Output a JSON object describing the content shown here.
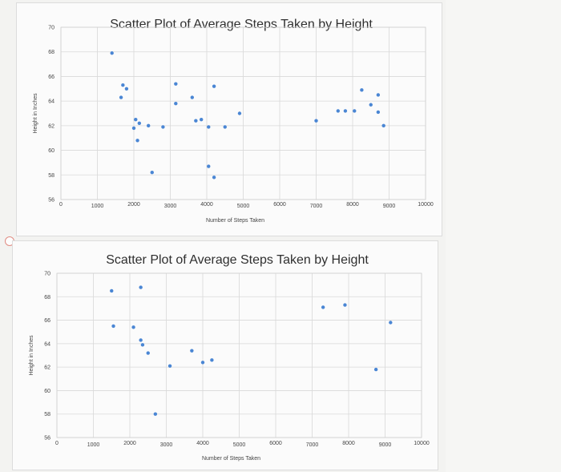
{
  "chart_data": [
    {
      "type": "scatter",
      "title": "Scatter Plot of Average Steps Taken by Height",
      "xlabel": "Number of Steps Taken",
      "ylabel": "Height in Inches",
      "xlim": [
        0,
        10000
      ],
      "ylim": [
        56,
        70
      ],
      "x_ticks": [
        "0",
        "1000",
        "2000",
        "3000",
        "4000",
        "5000",
        "6000",
        "7000",
        "8000",
        "9000",
        "10000"
      ],
      "y_ticks": [
        "56",
        "58",
        "60",
        "62",
        "64",
        "66",
        "68",
        "70"
      ],
      "grid": true,
      "point_color": "#4a86d4",
      "points": [
        {
          "x": 1400,
          "y": 67.9
        },
        {
          "x": 1700,
          "y": 65.3
        },
        {
          "x": 1800,
          "y": 65.0
        },
        {
          "x": 1650,
          "y": 64.3
        },
        {
          "x": 2050,
          "y": 62.5
        },
        {
          "x": 2150,
          "y": 62.2
        },
        {
          "x": 2000,
          "y": 61.8
        },
        {
          "x": 2100,
          "y": 60.8
        },
        {
          "x": 2400,
          "y": 62.0
        },
        {
          "x": 2500,
          "y": 58.2
        },
        {
          "x": 2800,
          "y": 61.9
        },
        {
          "x": 3150,
          "y": 65.4
        },
        {
          "x": 3150,
          "y": 63.8
        },
        {
          "x": 3600,
          "y": 64.3
        },
        {
          "x": 3700,
          "y": 62.4
        },
        {
          "x": 3850,
          "y": 62.5
        },
        {
          "x": 4050,
          "y": 61.9
        },
        {
          "x": 4200,
          "y": 65.2
        },
        {
          "x": 4500,
          "y": 61.9
        },
        {
          "x": 4050,
          "y": 58.7
        },
        {
          "x": 4200,
          "y": 57.8
        },
        {
          "x": 4900,
          "y": 63.0
        },
        {
          "x": 7000,
          "y": 62.4
        },
        {
          "x": 7600,
          "y": 63.2
        },
        {
          "x": 7800,
          "y": 63.2
        },
        {
          "x": 8050,
          "y": 63.2
        },
        {
          "x": 8250,
          "y": 64.9
        },
        {
          "x": 8500,
          "y": 63.7
        },
        {
          "x": 8700,
          "y": 64.5
        },
        {
          "x": 8700,
          "y": 63.1
        },
        {
          "x": 8850,
          "y": 62.0
        }
      ]
    },
    {
      "type": "scatter",
      "title": "Scatter Plot of Average Steps Taken by Height",
      "xlabel": "Number of Steps Taken",
      "ylabel": "Height in Inches",
      "xlim": [
        0,
        10000
      ],
      "ylim": [
        56,
        70
      ],
      "x_ticks": [
        "0",
        "1000",
        "2000",
        "3000",
        "4000",
        "5000",
        "6000",
        "7000",
        "8000",
        "9000",
        "10000"
      ],
      "y_ticks": [
        "56",
        "58",
        "60",
        "62",
        "64",
        "66",
        "68",
        "70"
      ],
      "grid": true,
      "point_color": "#4a86d4",
      "points": [
        {
          "x": 1500,
          "y": 68.5
        },
        {
          "x": 1550,
          "y": 65.5
        },
        {
          "x": 2300,
          "y": 68.8
        },
        {
          "x": 2100,
          "y": 65.4
        },
        {
          "x": 2300,
          "y": 64.3
        },
        {
          "x": 2350,
          "y": 63.9
        },
        {
          "x": 2500,
          "y": 63.2
        },
        {
          "x": 2700,
          "y": 58.0
        },
        {
          "x": 3100,
          "y": 62.1
        },
        {
          "x": 3700,
          "y": 63.4
        },
        {
          "x": 4000,
          "y": 62.4
        },
        {
          "x": 4250,
          "y": 62.6
        },
        {
          "x": 7300,
          "y": 67.1
        },
        {
          "x": 7900,
          "y": 67.3
        },
        {
          "x": 8750,
          "y": 61.8
        },
        {
          "x": 9150,
          "y": 65.8
        }
      ]
    }
  ]
}
